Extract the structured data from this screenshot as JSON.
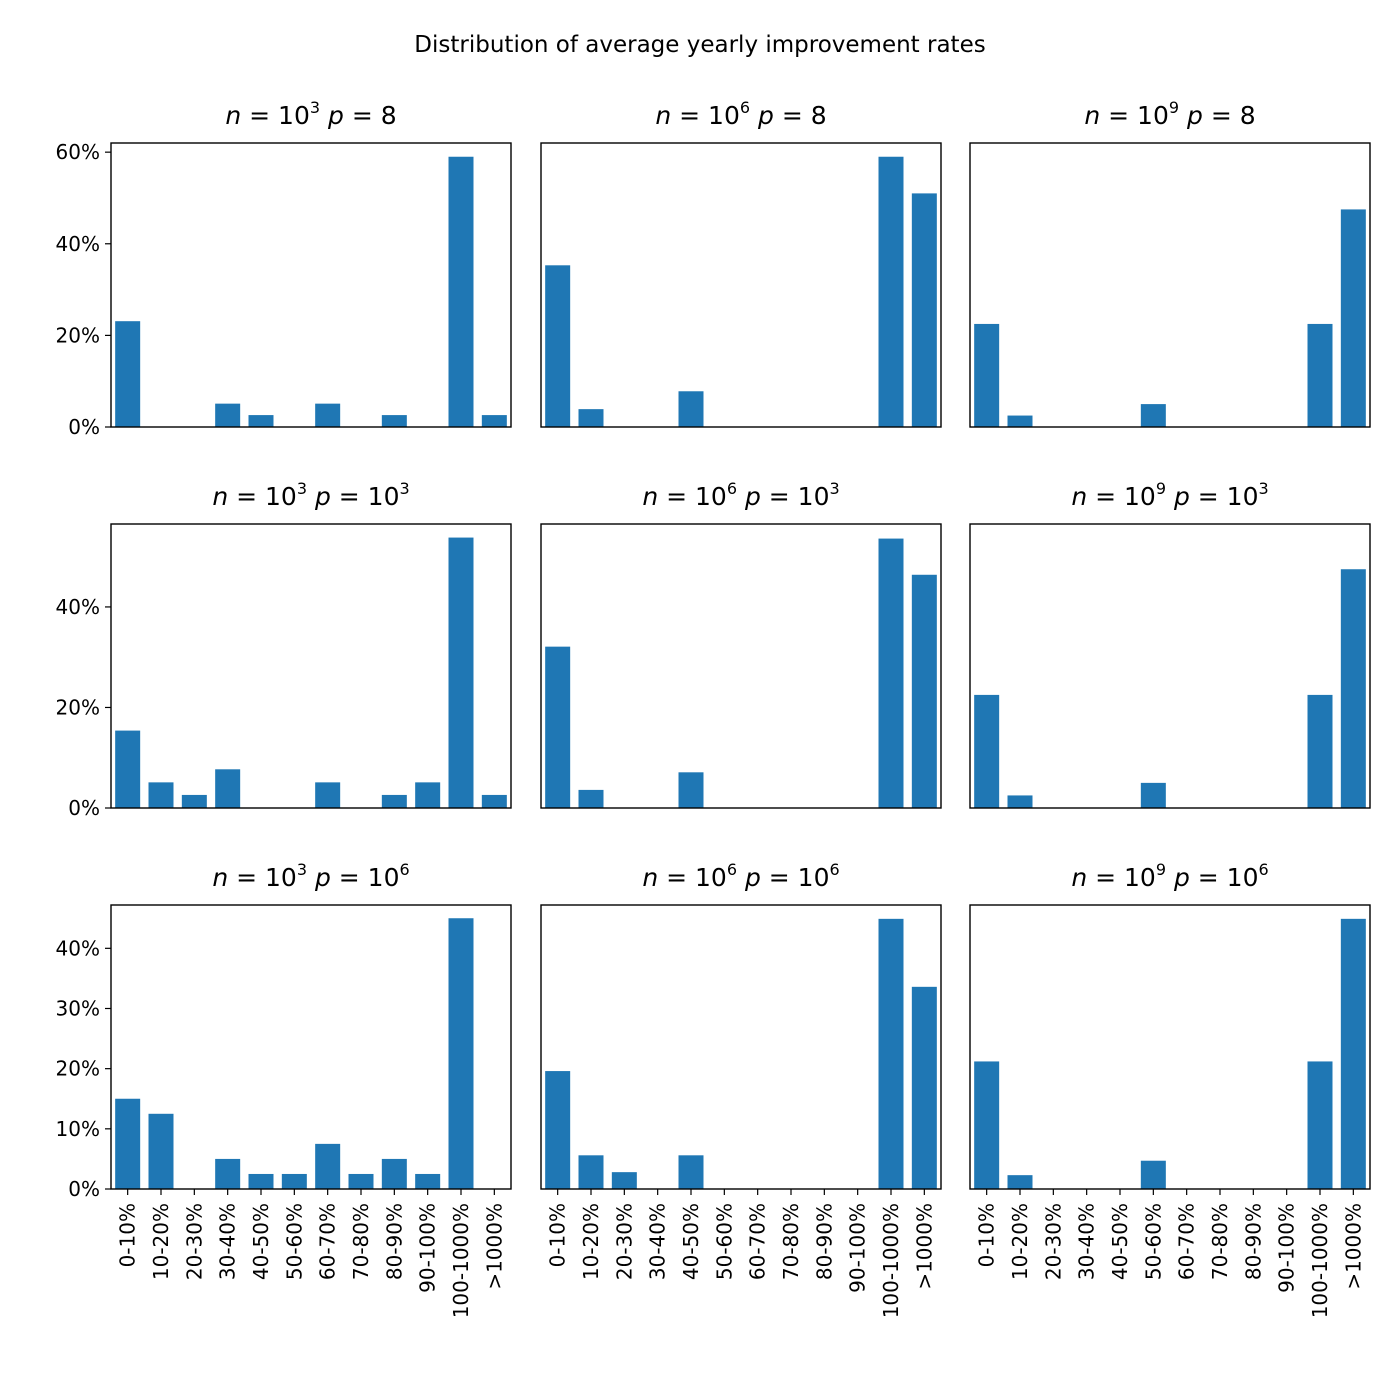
{
  "figure_title": "Distribution of average yearly improvement rates",
  "colors": {
    "bar": "#1f77b4",
    "axis": "#000000",
    "background": "#ffffff"
  },
  "categories": [
    "0-10%",
    "10-20%",
    "20-30%",
    "30-40%",
    "40-50%",
    "50-60%",
    "60-70%",
    "70-80%",
    "80-90%",
    "90-100%",
    "100-1000%",
    ">1000%"
  ],
  "chart_data": [
    {
      "type": "bar",
      "n_exp": "3",
      "p_val": "8",
      "p_exp": "",
      "ylim": [
        0,
        62
      ],
      "yticks": [
        0,
        20,
        40,
        60
      ],
      "show_ylabels": true,
      "values": [
        23.1,
        0,
        0,
        5.1,
        2.6,
        0,
        5.1,
        0,
        2.6,
        0,
        59.0,
        2.6
      ]
    },
    {
      "type": "bar",
      "n_exp": "6",
      "p_val": "8",
      "p_exp": "",
      "ylim": [
        0,
        62
      ],
      "yticks": [
        0,
        20,
        40,
        60
      ],
      "show_ylabels": false,
      "values": [
        35.3,
        3.9,
        0,
        0,
        7.8,
        0,
        0,
        0,
        0,
        0,
        59.0,
        51.0
      ]
    },
    {
      "type": "bar",
      "n_exp": "9",
      "p_val": "8",
      "p_exp": "",
      "ylim": [
        0,
        62
      ],
      "yticks": [
        0,
        20,
        40,
        60
      ],
      "show_ylabels": false,
      "values": [
        22.5,
        2.5,
        0,
        0,
        0,
        5.0,
        0,
        0,
        0,
        0,
        22.5,
        47.5
      ]
    },
    {
      "type": "bar",
      "n_exp": "3",
      "p_val": "10",
      "p_exp": "3",
      "ylim": [
        0,
        56.5
      ],
      "yticks": [
        0,
        20,
        40
      ],
      "show_ylabels": true,
      "values": [
        15.4,
        5.1,
        2.6,
        7.7,
        0,
        0,
        5.1,
        0,
        2.6,
        5.1,
        53.8,
        2.6
      ]
    },
    {
      "type": "bar",
      "n_exp": "6",
      "p_val": "10",
      "p_exp": "3",
      "ylim": [
        0,
        56.5
      ],
      "yticks": [
        0,
        20,
        40
      ],
      "show_ylabels": false,
      "values": [
        32.1,
        3.6,
        0,
        0,
        7.1,
        0,
        0,
        0,
        0,
        0,
        53.6,
        46.4
      ]
    },
    {
      "type": "bar",
      "n_exp": "9",
      "p_val": "10",
      "p_exp": "3",
      "ylim": [
        0,
        56.5
      ],
      "yticks": [
        0,
        20,
        40
      ],
      "show_ylabels": false,
      "values": [
        22.5,
        2.5,
        0,
        0,
        0,
        5.0,
        0,
        0,
        0,
        0,
        22.5,
        47.5
      ]
    },
    {
      "type": "bar",
      "n_exp": "3",
      "p_val": "10",
      "p_exp": "6",
      "ylim": [
        0,
        47.2
      ],
      "yticks": [
        0,
        10,
        20,
        30,
        40
      ],
      "show_ylabels": true,
      "values": [
        15.0,
        12.5,
        0,
        5.0,
        2.5,
        2.5,
        7.5,
        2.5,
        5.0,
        2.5,
        45.0,
        0
      ]
    },
    {
      "type": "bar",
      "n_exp": "6",
      "p_val": "10",
      "p_exp": "6",
      "ylim": [
        0,
        47.2
      ],
      "yticks": [
        0,
        10,
        20,
        30,
        40
      ],
      "show_ylabels": false,
      "values": [
        19.6,
        5.6,
        2.8,
        0,
        5.6,
        0,
        0,
        0,
        0,
        0,
        44.9,
        33.6
      ]
    },
    {
      "type": "bar",
      "n_exp": "9",
      "p_val": "10",
      "p_exp": "6",
      "ylim": [
        0,
        47.2
      ],
      "yticks": [
        0,
        10,
        20,
        30,
        40
      ],
      "show_ylabels": false,
      "values": [
        21.2,
        2.3,
        0,
        0,
        0,
        4.7,
        0,
        0,
        0,
        0,
        21.2,
        44.9
      ]
    }
  ]
}
